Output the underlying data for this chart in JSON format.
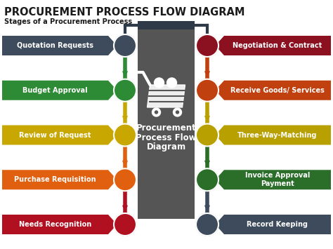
{
  "title": "PROCUREMENT PROCESS FLOW DIAGRAM",
  "subtitle": "Stages of a Procurement Process",
  "center_text": [
    "Procurement",
    "Process Flow",
    "Diagram"
  ],
  "title_color": "#1a1a1a",
  "subtitle_color": "#1a1a1a",
  "background_color": "#ffffff",
  "left_items": [
    {
      "label": "Quotation Requests",
      "box_color": "#3d4b5c"
    },
    {
      "label": "Budget Approval",
      "box_color": "#2e8b35"
    },
    {
      "label": "Review of Request",
      "box_color": "#c8a800"
    },
    {
      "label": "Purchase Requisition",
      "box_color": "#e06010"
    },
    {
      "label": "Needs Recognition",
      "box_color": "#b01020"
    }
  ],
  "right_items": [
    {
      "label": "Negotiation & Contract",
      "box_color": "#8b1020"
    },
    {
      "label": "Receive Goods/ Services",
      "box_color": "#c04010"
    },
    {
      "label": "Three-Way-Matching",
      "box_color": "#b8a000"
    },
    {
      "label": "Invoice Approval\nPayment",
      "box_color": "#2a6e2a"
    },
    {
      "label": "Record Keeping",
      "box_color": "#3d4b5c"
    }
  ],
  "circle_colors_left": [
    "#3d4b5c",
    "#2e8b35",
    "#c8a800",
    "#e06010",
    "#b01020"
  ],
  "circle_colors_right": [
    "#8b1020",
    "#c04010",
    "#b8a000",
    "#2a6e2a",
    "#3d4b5c"
  ],
  "connector_colors_left": [
    "#2e8b35",
    "#c8a800",
    "#e06010",
    "#b01020"
  ],
  "connector_colors_right": [
    "#c04010",
    "#b8a000",
    "#2a6e2a",
    "#3d4b5c"
  ],
  "top_bar_color": "#2e3a47",
  "center_box_color": "#555555"
}
